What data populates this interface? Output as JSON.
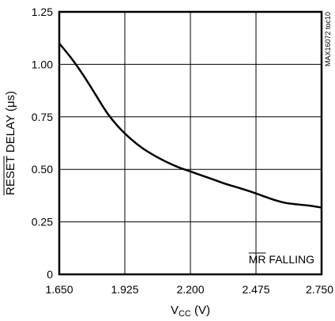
{
  "chart_data": {
    "type": "line",
    "title": "",
    "xlabel": "VCC (V)",
    "xlabel_parts": {
      "main": "V",
      "sub": "CC",
      "unit": " (V)"
    },
    "ylabel": "RESET DELAY (μs)",
    "ylabel_parts": {
      "over": "RESET",
      "rest": " DELAY (μs)"
    },
    "xlim": [
      1.65,
      2.75
    ],
    "ylim": [
      0,
      1.25
    ],
    "x_ticks": [
      1.65,
      1.925,
      2.2,
      2.475,
      2.75
    ],
    "x_tick_labels": [
      "1.650",
      "1.925",
      "2.200",
      "2.475",
      "2.750"
    ],
    "y_ticks": [
      0,
      0.25,
      0.5,
      0.75,
      1.0,
      1.25
    ],
    "y_tick_labels": [
      "0",
      "0.25",
      "0.50",
      "0.75",
      "1.00",
      "1.25"
    ],
    "grid": true,
    "legend": "none",
    "annotation": {
      "over": "MR",
      "rest": " FALLING"
    },
    "watermark": "MAX16072 toc10",
    "series": [
      {
        "x": [
          1.65,
          1.7,
          1.75,
          1.8,
          1.85,
          1.9,
          1.95,
          2.0,
          2.05,
          2.1,
          2.15,
          2.2,
          2.25,
          2.3,
          2.35,
          2.4,
          2.45,
          2.5,
          2.55,
          2.6,
          2.65,
          2.7,
          2.75
        ],
        "values": [
          1.1,
          1.03,
          0.95,
          0.86,
          0.77,
          0.7,
          0.645,
          0.6,
          0.565,
          0.535,
          0.51,
          0.49,
          0.47,
          0.45,
          0.43,
          0.413,
          0.395,
          0.375,
          0.355,
          0.34,
          0.333,
          0.327,
          0.318
        ]
      }
    ]
  }
}
